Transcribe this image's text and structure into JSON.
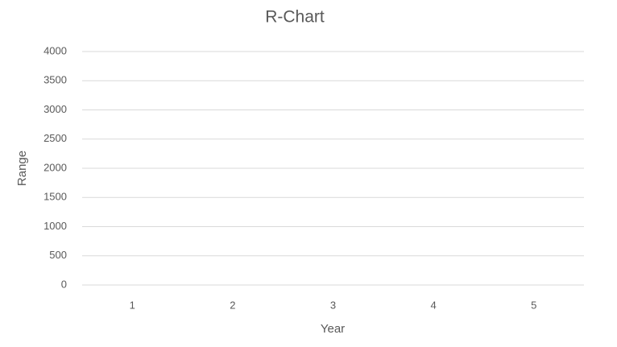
{
  "chart_data": {
    "type": "line",
    "title": "R-Chart",
    "x_label": "Year",
    "y_label": "Range",
    "categories": [
      "1",
      "2",
      "3",
      "4",
      "5"
    ],
    "ylim": [
      0,
      4000
    ],
    "yticks": [
      0,
      500,
      1000,
      1500,
      2000,
      2500,
      3000,
      3500,
      4000
    ],
    "grid": true
  }
}
